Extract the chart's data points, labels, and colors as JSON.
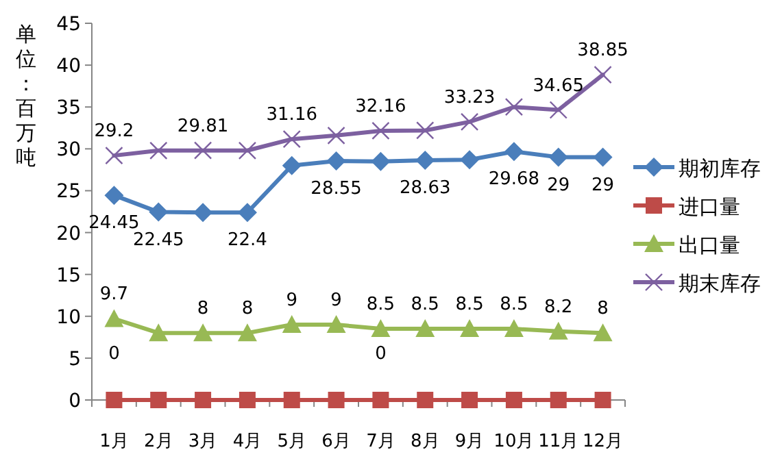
{
  "chart_data": {
    "type": "line",
    "ylabel": "单位：百万吨",
    "categories": [
      "1月",
      "2月",
      "3月",
      "4月",
      "5月",
      "6月",
      "7月",
      "8月",
      "9月",
      "10月",
      "11月",
      "12月"
    ],
    "ylim": [
      0,
      45
    ],
    "yticks": [
      0,
      5,
      10,
      15,
      20,
      25,
      30,
      35,
      40,
      45
    ],
    "grid": false,
    "legend": "right",
    "series": [
      {
        "name": "期初库存",
        "color": "#4a7ebb",
        "marker": "diamond",
        "values": [
          24.45,
          22.45,
          22.4,
          22.4,
          28.0,
          28.55,
          28.5,
          28.63,
          28.7,
          29.68,
          29,
          29
        ],
        "value_labels": [
          "24.45",
          "22.45",
          null,
          "22.4",
          null,
          "28.55",
          null,
          "28.63",
          null,
          "29.68",
          "29",
          "29"
        ]
      },
      {
        "name": "进口量",
        "color": "#be4b48",
        "marker": "square",
        "values": [
          0,
          0,
          0,
          0,
          0,
          0,
          0,
          0,
          0,
          0,
          0,
          0
        ],
        "value_labels": [
          "0",
          null,
          null,
          null,
          null,
          null,
          "0",
          null,
          null,
          null,
          null,
          null
        ]
      },
      {
        "name": "出口量",
        "color": "#98b954",
        "marker": "triangle",
        "values": [
          9.7,
          8,
          8,
          8,
          9,
          9,
          8.5,
          8.5,
          8.5,
          8.5,
          8.2,
          8
        ],
        "value_labels": [
          "9.7",
          null,
          "8",
          "8",
          "9",
          "9",
          "8.5",
          "8.5",
          "8.5",
          "8.5",
          "8.2",
          "8"
        ]
      },
      {
        "name": "期末库存",
        "color": "#7d60a0",
        "marker": "cross",
        "values": [
          29.2,
          29.8,
          29.81,
          29.8,
          31.16,
          31.6,
          32.16,
          32.2,
          33.23,
          35,
          34.65,
          38.85
        ],
        "value_labels": [
          "29.2",
          null,
          "29.81",
          null,
          "31.16",
          null,
          "32.16",
          null,
          "33.23",
          null,
          "34.65",
          "38.85"
        ]
      }
    ]
  }
}
